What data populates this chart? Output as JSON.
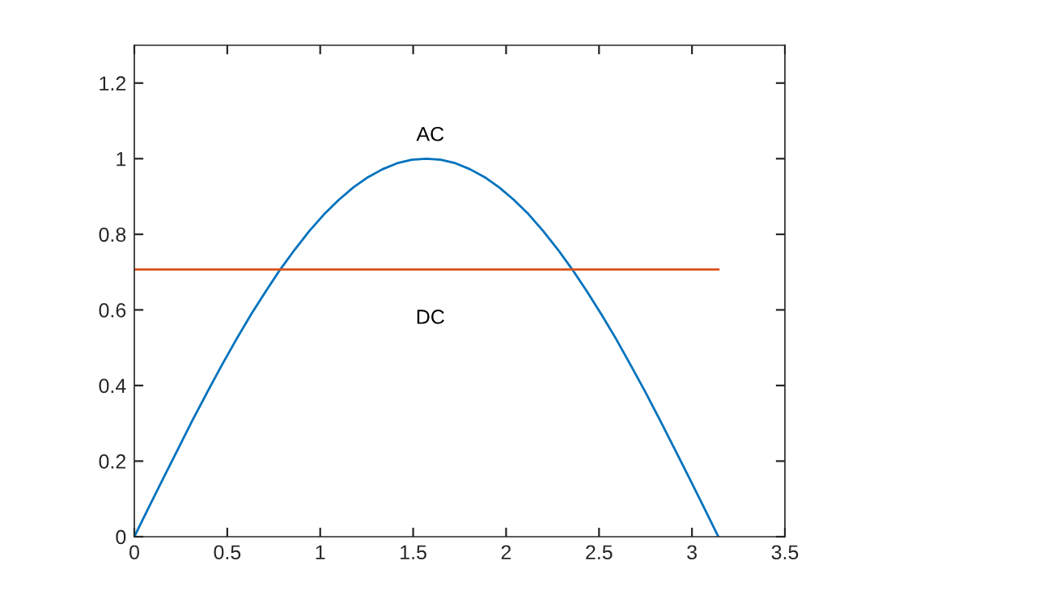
{
  "chart_data": {
    "type": "line",
    "series": [
      {
        "color": "#0072bd",
        "x": [
          0,
          0.079,
          0.157,
          0.236,
          0.314,
          0.393,
          0.471,
          0.55,
          0.628,
          0.707,
          0.785,
          0.864,
          0.942,
          1.021,
          1.1,
          1.178,
          1.257,
          1.335,
          1.414,
          1.492,
          1.571,
          1.649,
          1.728,
          1.806,
          1.885,
          1.963,
          2.042,
          2.121,
          2.199,
          2.278,
          2.356,
          2.435,
          2.513,
          2.592,
          2.67,
          2.749,
          2.827,
          2.906,
          2.985,
          3.063,
          3.142
        ],
        "values": [
          0,
          0.079,
          0.156,
          0.233,
          0.309,
          0.383,
          0.454,
          0.523,
          0.588,
          0.649,
          0.707,
          0.76,
          0.809,
          0.853,
          0.891,
          0.924,
          0.951,
          0.972,
          0.988,
          0.997,
          1,
          0.997,
          0.988,
          0.972,
          0.951,
          0.924,
          0.891,
          0.853,
          0.809,
          0.76,
          0.707,
          0.649,
          0.588,
          0.523,
          0.454,
          0.383,
          0.309,
          0.233,
          0.156,
          0.079,
          0
        ]
      },
      {
        "color": "#d95319",
        "x": [
          0,
          3.142
        ],
        "values": [
          0.707,
          0.707
        ]
      }
    ],
    "xlim": [
      0,
      3.5
    ],
    "xticks": [
      0,
      0.5,
      1,
      1.5,
      2,
      2.5,
      3,
      3.5
    ],
    "ylim": [
      0,
      1.3
    ],
    "yticks": [
      0,
      0.2,
      0.4,
      0.6,
      0.8,
      1,
      1.2
    ],
    "annotations": [
      "AC",
      "DC"
    ],
    "marker": "none",
    "line_style": "solid"
  }
}
